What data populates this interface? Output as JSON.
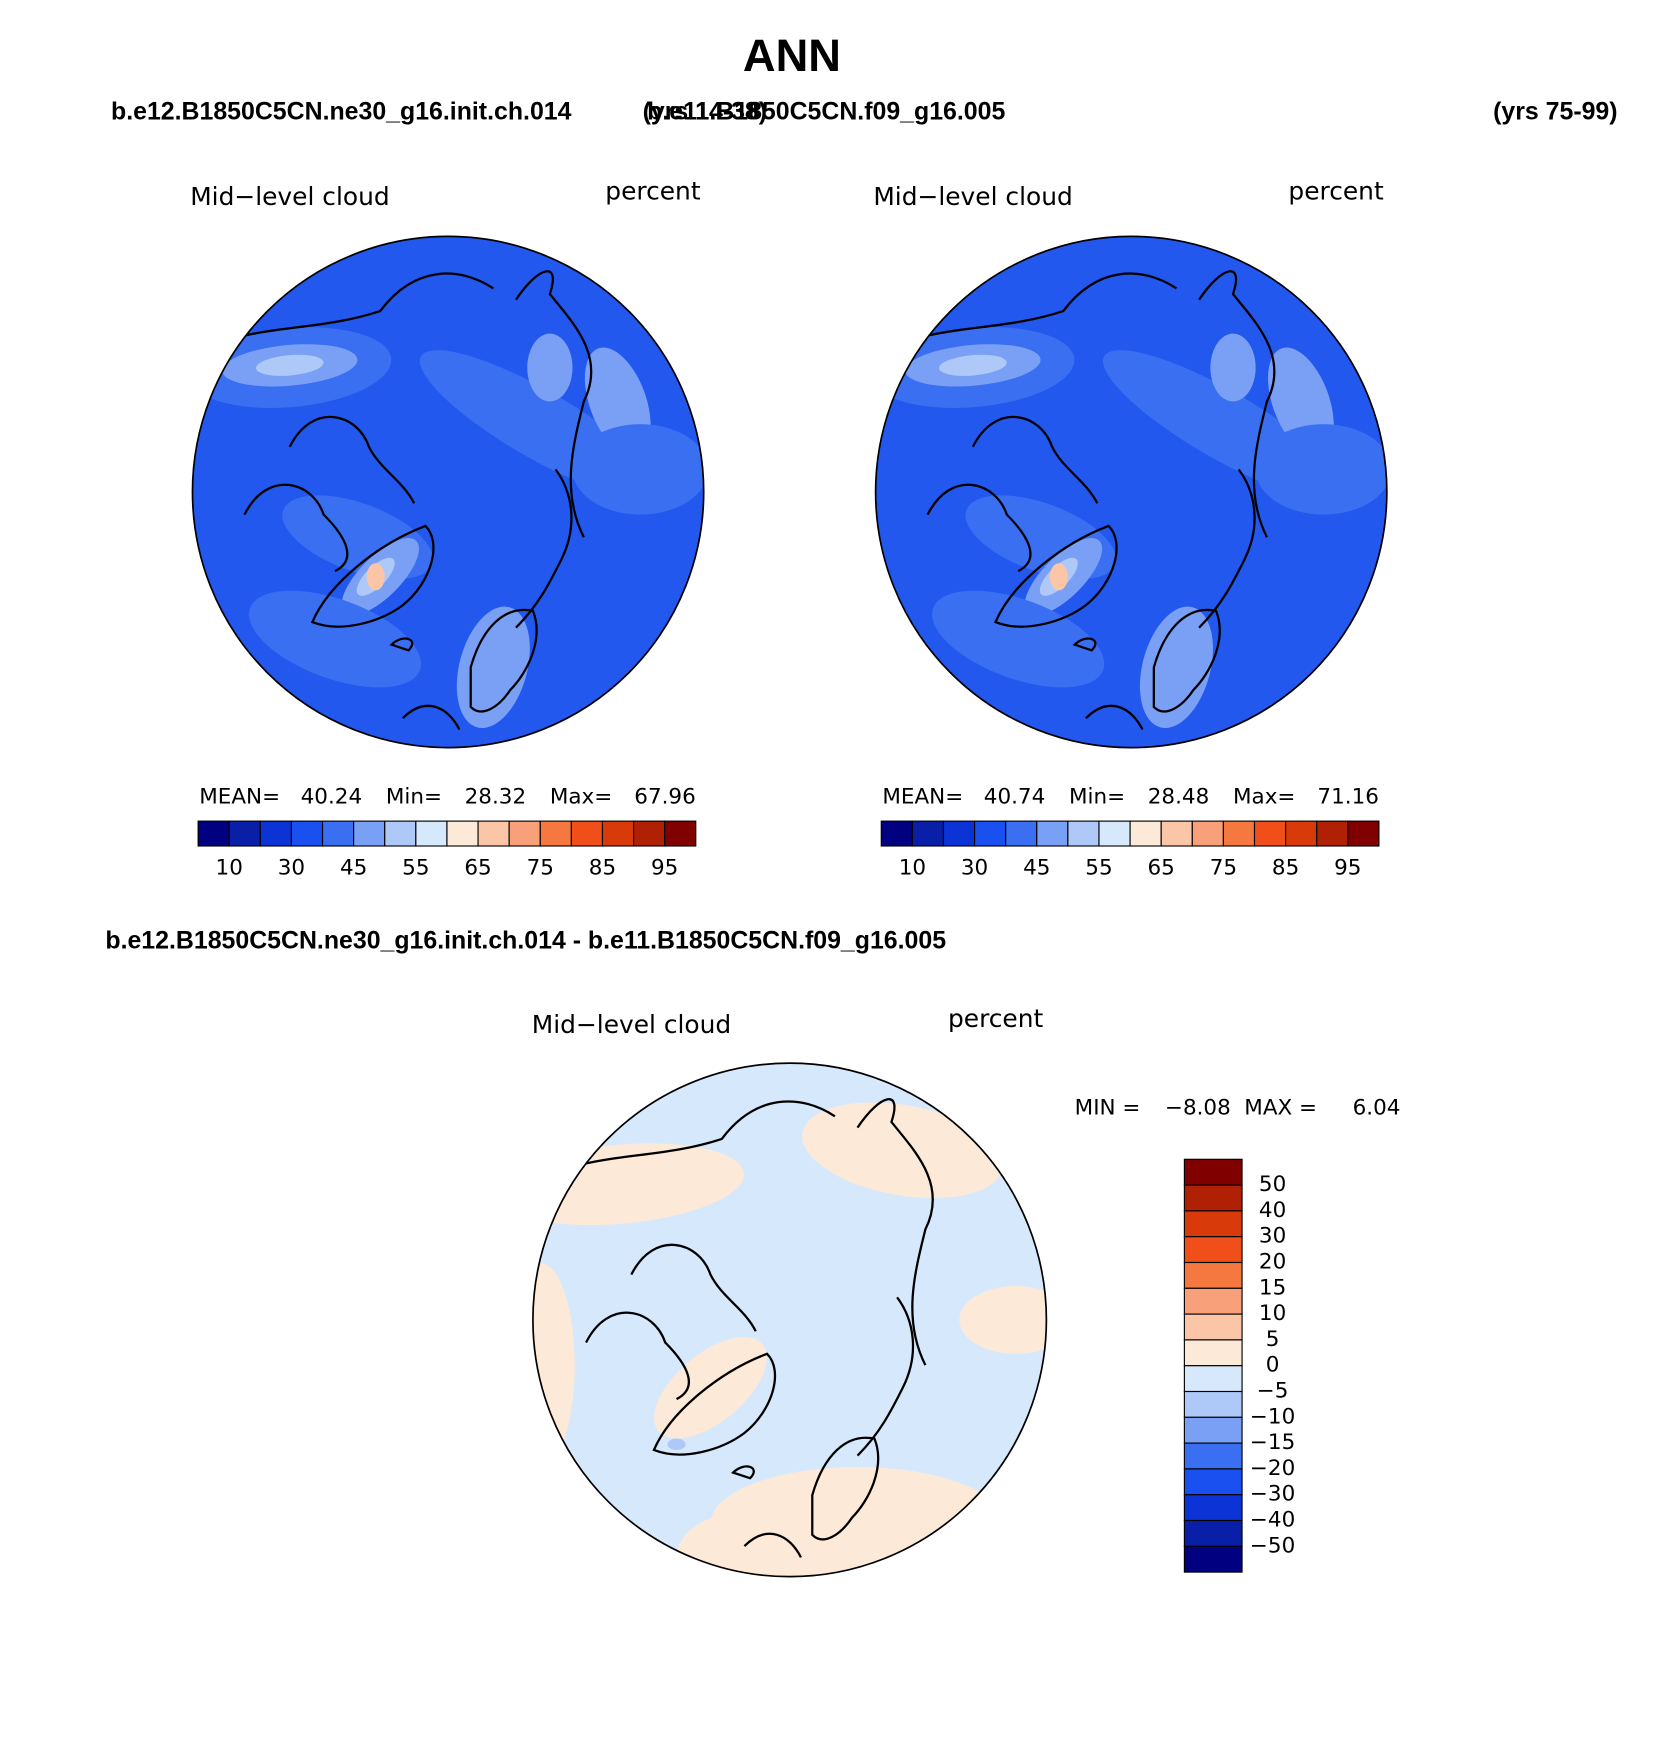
{
  "title": "ANN",
  "header": {
    "case1": "b.e12.B1850C5CN.ne30_g16.init.ch.014",
    "years1": "(yrs 14-38)",
    "case2": "b.e11.B1850C5CN.f09_g16.005",
    "years2": "(yrs 75-99)"
  },
  "panels": [
    {
      "variable": "Mid−level cloud",
      "units": "percent",
      "stats": [
        {
          "label": "MEAN=",
          "value": 40.24
        },
        {
          "label": "Min=",
          "value": 28.32
        },
        {
          "label": "Max=",
          "value": 67.96
        }
      ],
      "colorbar": {
        "labels": [
          10,
          30,
          45,
          55,
          65,
          75,
          85,
          95
        ],
        "colors": [
          "#000080",
          "#0a1fa8",
          "#0b33d6",
          "#1a4ff0",
          "#3a6ff2",
          "#7aa0f5",
          "#aec8f8",
          "#d6e8fb",
          "#fde9d8",
          "#fbc6a8",
          "#f8a07a",
          "#f57840",
          "#f04f1a",
          "#d93a0a",
          "#b02005",
          "#800000"
        ]
      }
    },
    {
      "variable": "Mid−level cloud",
      "units": "percent",
      "stats": [
        {
          "label": "MEAN=",
          "value": 40.74
        },
        {
          "label": "Min=",
          "value": 28.48
        },
        {
          "label": "Max=",
          "value": 71.16
        }
      ],
      "colorbar": {
        "labels": [
          10,
          30,
          45,
          55,
          65,
          75,
          85,
          95
        ],
        "colors": [
          "#000080",
          "#0a1fa8",
          "#0b33d6",
          "#1a4ff0",
          "#3a6ff2",
          "#7aa0f5",
          "#aec8f8",
          "#d6e8fb",
          "#fde9d8",
          "#fbc6a8",
          "#f8a07a",
          "#f57840",
          "#f04f1a",
          "#d93a0a",
          "#b02005",
          "#800000"
        ]
      }
    }
  ],
  "difference": {
    "title": "b.e12.B1850C5CN.ne30_g16.init.ch.014 - b.e11.B1850C5CN.f09_g16.005",
    "variable": "Mid−level cloud",
    "units": "percent",
    "stats": [
      {
        "label": "MIN =",
        "value": "−8.08"
      },
      {
        "label": "MAX =",
        "value": 6.04
      }
    ],
    "colorbar": {
      "labels": [
        "50",
        "40",
        "30",
        "20",
        "15",
        "10",
        "5",
        "0",
        "−5",
        "−10",
        "−15",
        "−20",
        "−30",
        "−40",
        "−50"
      ],
      "colors": [
        "#800000",
        "#b02005",
        "#d93a0a",
        "#f04f1a",
        "#f57840",
        "#f8a07a",
        "#fbc6a8",
        "#fde9d8",
        "#d6e8fb",
        "#aec8f8",
        "#7aa0f5",
        "#3a6ff2",
        "#1a4ff0",
        "#0b33d6",
        "#0a1fa8",
        "#000080"
      ]
    }
  }
}
